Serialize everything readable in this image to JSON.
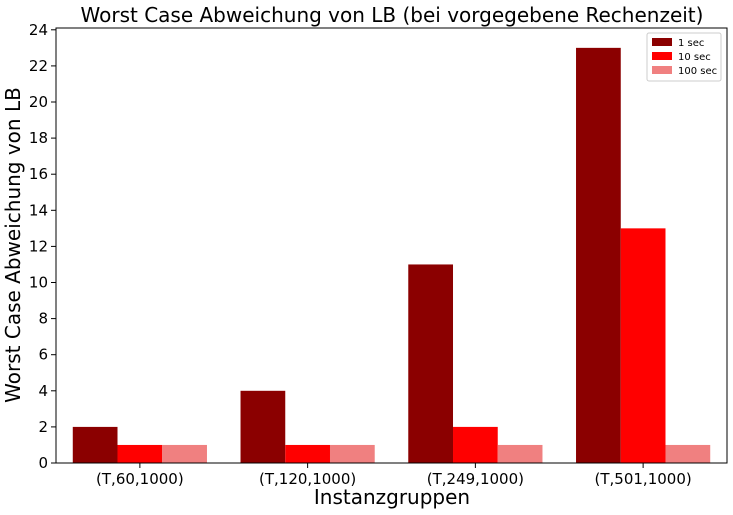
{
  "chart_data": {
    "type": "bar",
    "title": "Worst Case Abweichung von LB (bei vorgegebene Rechenzeit)",
    "xlabel": "Instanzgruppen",
    "ylabel": "Worst Case Abweichung von LB",
    "categories": [
      "(T,60,1000)",
      "(T,120,1000)",
      "(T,249,1000)",
      "(T,501,1000)"
    ],
    "series": [
      {
        "name": "1 sec",
        "color": "#8b0000",
        "values": [
          2,
          4,
          11,
          23
        ]
      },
      {
        "name": "10 sec",
        "color": "#ff0000",
        "values": [
          1,
          1,
          2,
          13
        ]
      },
      {
        "name": "100 sec",
        "color": "#f08080",
        "values": [
          1,
          1,
          1,
          1
        ]
      }
    ],
    "ylim": [
      0,
      24.1
    ],
    "yticks": [
      0,
      2,
      4,
      6,
      8,
      10,
      12,
      14,
      16,
      18,
      20,
      22,
      24
    ],
    "grid": false,
    "legend_position": "top-right"
  }
}
